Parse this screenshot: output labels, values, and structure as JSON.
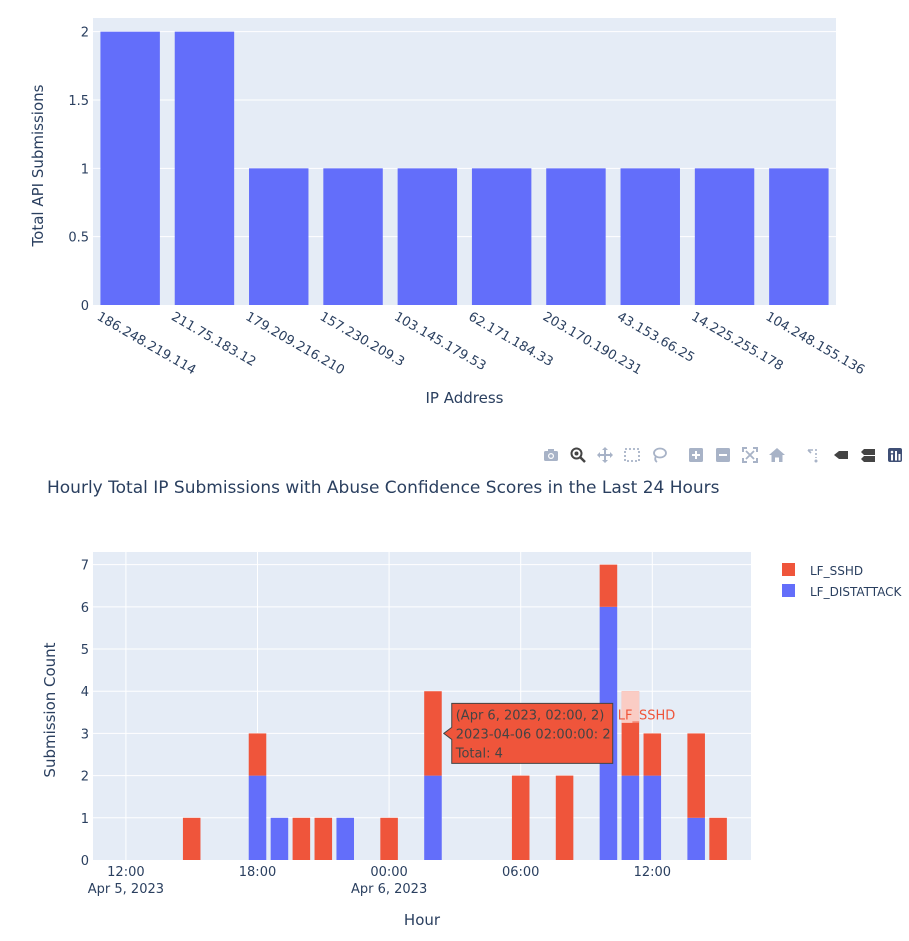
{
  "chart_data": [
    {
      "type": "bar",
      "title": "",
      "xlabel": "IP Address",
      "ylabel": "Total API Submissions",
      "categories": [
        "186.248.219.114",
        "211.75.183.12",
        "179.209.216.210",
        "157.230.209.3",
        "103.145.179.53",
        "62.171.184.33",
        "203.170.190.231",
        "43.153.66.25",
        "14.225.255.178",
        "104.248.155.136"
      ],
      "values": [
        2,
        2,
        1,
        1,
        1,
        1,
        1,
        1,
        1,
        1
      ],
      "ylim": [
        0,
        2.1
      ],
      "yticks": [
        0,
        0.5,
        1,
        1.5,
        2
      ],
      "ytick_labels": [
        "0",
        "0.5",
        "1",
        "1.5",
        "2"
      ],
      "color": "#636efa",
      "grid": true
    },
    {
      "type": "bar",
      "stacked": true,
      "title": "Hourly Total IP Submissions with Abuse Confidence Scores in the Last 24 Hours",
      "xlabel": "Hour",
      "ylabel": "Submission Count",
      "x_hours_from_apr5_1200": [
        3,
        6,
        7,
        8,
        9,
        10,
        12,
        14,
        18,
        20,
        22,
        23,
        24,
        26,
        27
      ],
      "series": [
        {
          "name": "LF_DISTATTACK",
          "color": "#636efa",
          "values": [
            0,
            2,
            1,
            0,
            0,
            1,
            0,
            2,
            0,
            0,
            6,
            2,
            2,
            1,
            0
          ]
        },
        {
          "name": "LF_SSHD",
          "color": "#ef553b",
          "values": [
            1,
            1,
            0,
            1,
            1,
            0,
            1,
            2,
            2,
            2,
            1,
            2,
            1,
            2,
            1
          ]
        }
      ],
      "x_ticks": [
        {
          "h": 0,
          "label": "12:00",
          "sub": "Apr 5, 2023"
        },
        {
          "h": 6,
          "label": "18:00",
          "sub": ""
        },
        {
          "h": 12,
          "label": "00:00",
          "sub": "Apr 6, 2023"
        },
        {
          "h": 18,
          "label": "06:00",
          "sub": ""
        },
        {
          "h": 24,
          "label": "12:00",
          "sub": ""
        }
      ],
      "ylim": [
        0,
        7.3
      ],
      "yticks": [
        0,
        1,
        2,
        3,
        4,
        5,
        6,
        7
      ],
      "legend": [
        "LF_SSHD",
        "LF_DISTATTACK"
      ],
      "legend_position": "top-right",
      "grid": true,
      "tooltip": {
        "line1": "(Apr 6, 2023, 02:00, 2)",
        "line2": "2023-04-06 02:00:00: 2",
        "line3": "Total: 4",
        "trace": "LF_SSHD",
        "x_hours_from_apr5_1200": 14,
        "y": 3
      },
      "hover_highlight": {
        "x_hours_from_apr5_1200": 23,
        "y_from": 3.25,
        "y_to": 4
      }
    }
  ],
  "modebar": [
    {
      "name": "camera-icon",
      "title": "Download plot as a png"
    },
    {
      "name": "zoom-icon",
      "title": "Zoom"
    },
    {
      "name": "pan-icon",
      "title": "Pan"
    },
    {
      "name": "box-select-icon",
      "title": "Box Select"
    },
    {
      "name": "lasso-select-icon",
      "title": "Lasso Select"
    },
    {
      "name": "zoom-in-icon",
      "title": "Zoom in"
    },
    {
      "name": "zoom-out-icon",
      "title": "Zoom out"
    },
    {
      "name": "autoscale-icon",
      "title": "Autoscale"
    },
    {
      "name": "reset-axes-icon",
      "title": "Reset axes"
    },
    {
      "name": "spike-lines-icon",
      "title": "Toggle Spike Lines"
    },
    {
      "name": "hover-closest-icon",
      "title": "Show closest data on hover"
    },
    {
      "name": "hover-compare-icon",
      "title": "Compare data on hover"
    },
    {
      "name": "plotly-logo-icon",
      "title": "Produced with Plotly"
    }
  ]
}
